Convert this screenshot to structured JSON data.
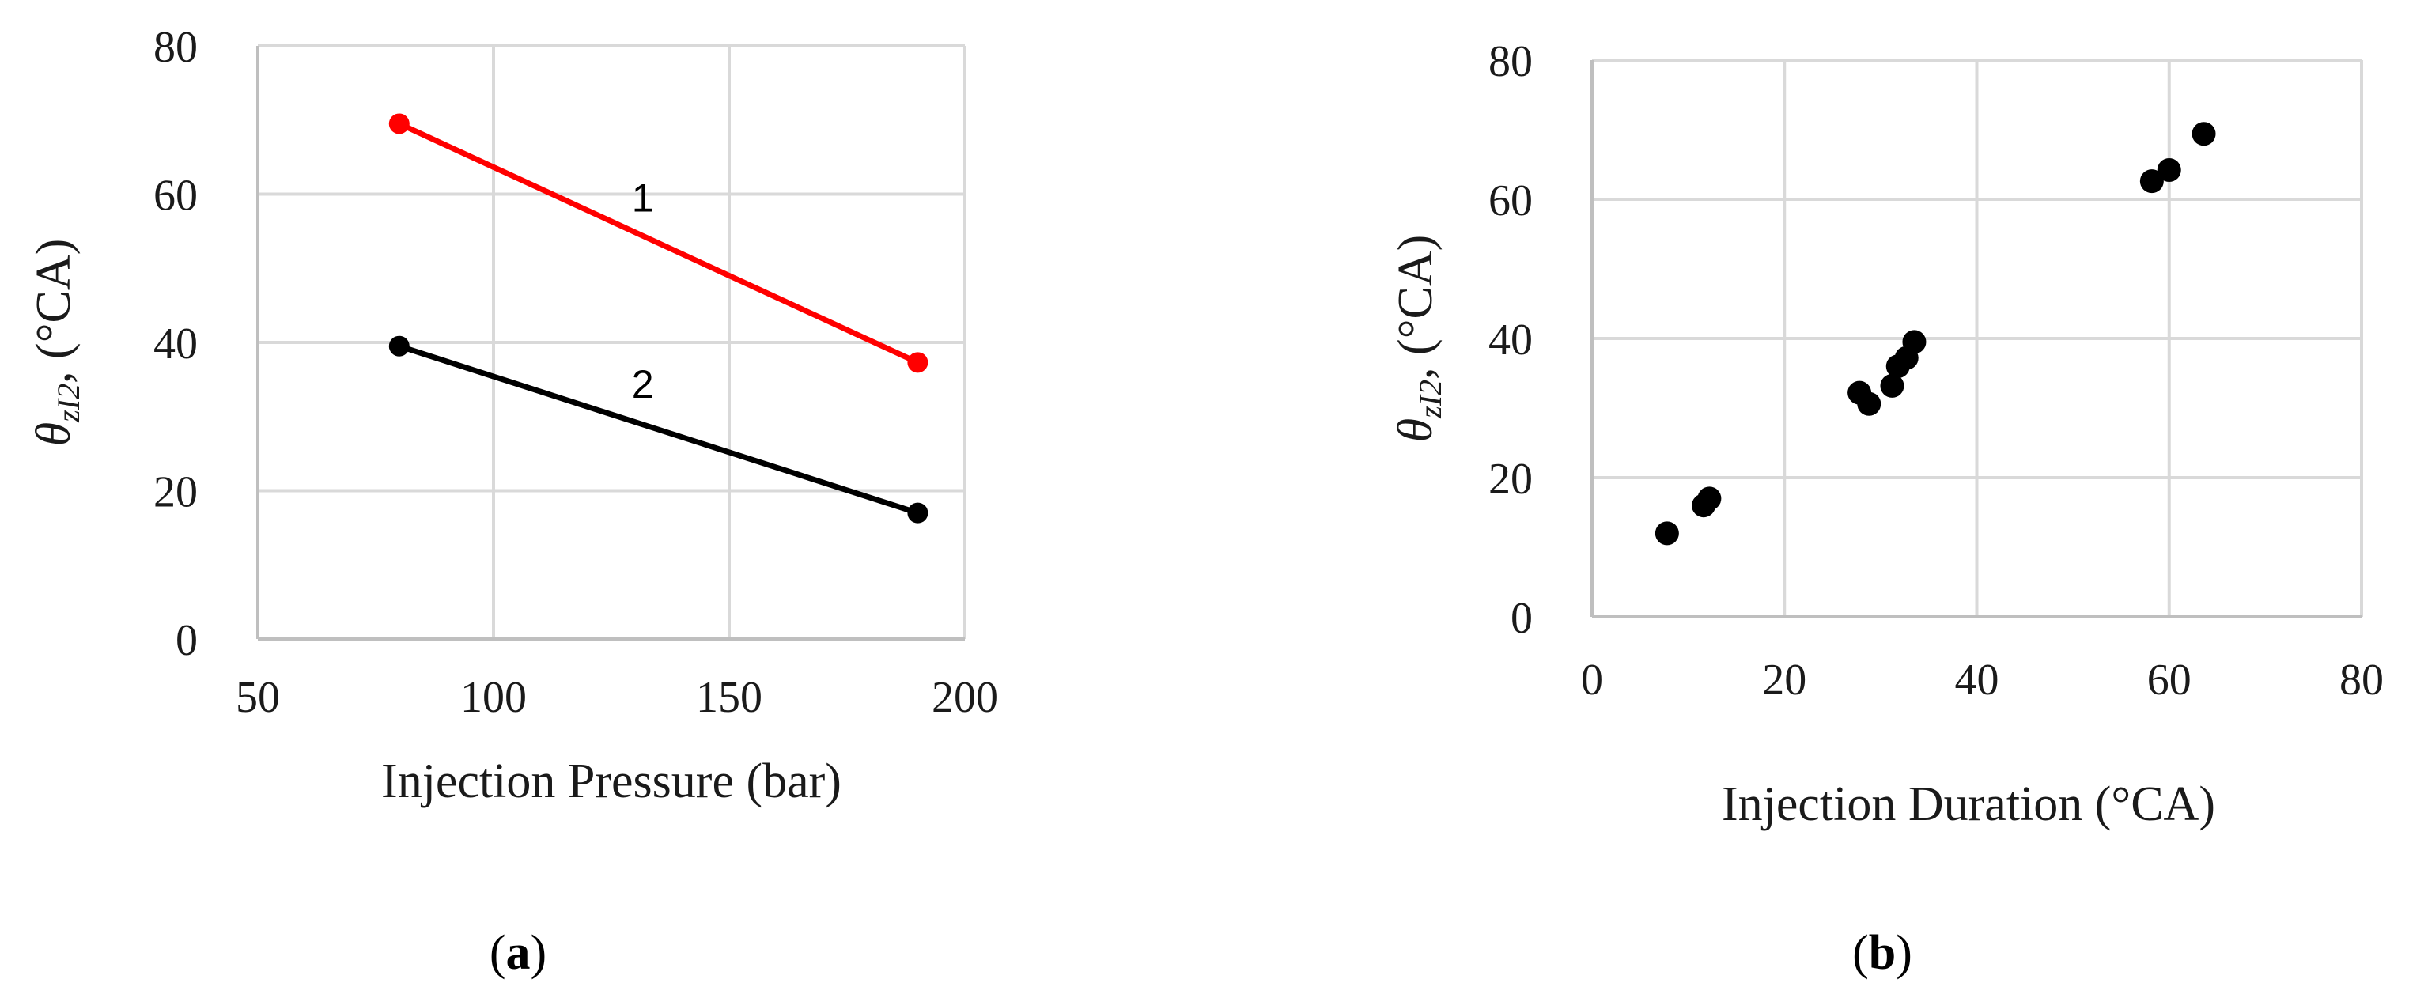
{
  "chart_data": [
    {
      "panel_label": {
        "open": "(",
        "letter": "a",
        "close": ")"
      },
      "type": "line",
      "xlabel": "Injection Pressure (bar)",
      "ylabel": {
        "symbol": "θ",
        "subscript": "zI2",
        "rest": ", (°CA)"
      },
      "xlim": [
        50,
        200
      ],
      "ylim": [
        0,
        80
      ],
      "xticks": [
        50,
        100,
        150,
        200
      ],
      "yticks": [
        0,
        20,
        40,
        60,
        80
      ],
      "grid": true,
      "series": [
        {
          "label": "1",
          "color": "#ff0000",
          "x": [
            80,
            190
          ],
          "y": [
            69.5,
            37.3
          ]
        },
        {
          "label": "2",
          "color": "#000000",
          "x": [
            80,
            190
          ],
          "y": [
            39.5,
            17.0
          ]
        }
      ]
    },
    {
      "panel_label": {
        "open": "(",
        "letter": "b",
        "close": ")"
      },
      "type": "scatter",
      "xlabel": "Injection Duration (°CA)",
      "ylabel": {
        "symbol": "θ",
        "subscript": "zI2",
        "rest": ", (°CA)"
      },
      "xlim": [
        0,
        80
      ],
      "ylim": [
        0,
        80
      ],
      "xticks": [
        0,
        20,
        40,
        60,
        80
      ],
      "yticks": [
        0,
        20,
        40,
        60,
        80
      ],
      "grid": true,
      "series": [
        {
          "color": "#000000",
          "points": [
            [
              7.8,
              12.0
            ],
            [
              11.6,
              16.0
            ],
            [
              12.2,
              17.0
            ],
            [
              27.8,
              32.2
            ],
            [
              28.8,
              30.6
            ],
            [
              31.2,
              33.2
            ],
            [
              31.8,
              36.0
            ],
            [
              32.7,
              37.2
            ],
            [
              33.5,
              39.5
            ],
            [
              58.2,
              62.6
            ],
            [
              60.0,
              64.2
            ],
            [
              63.6,
              69.4
            ]
          ]
        }
      ]
    }
  ]
}
